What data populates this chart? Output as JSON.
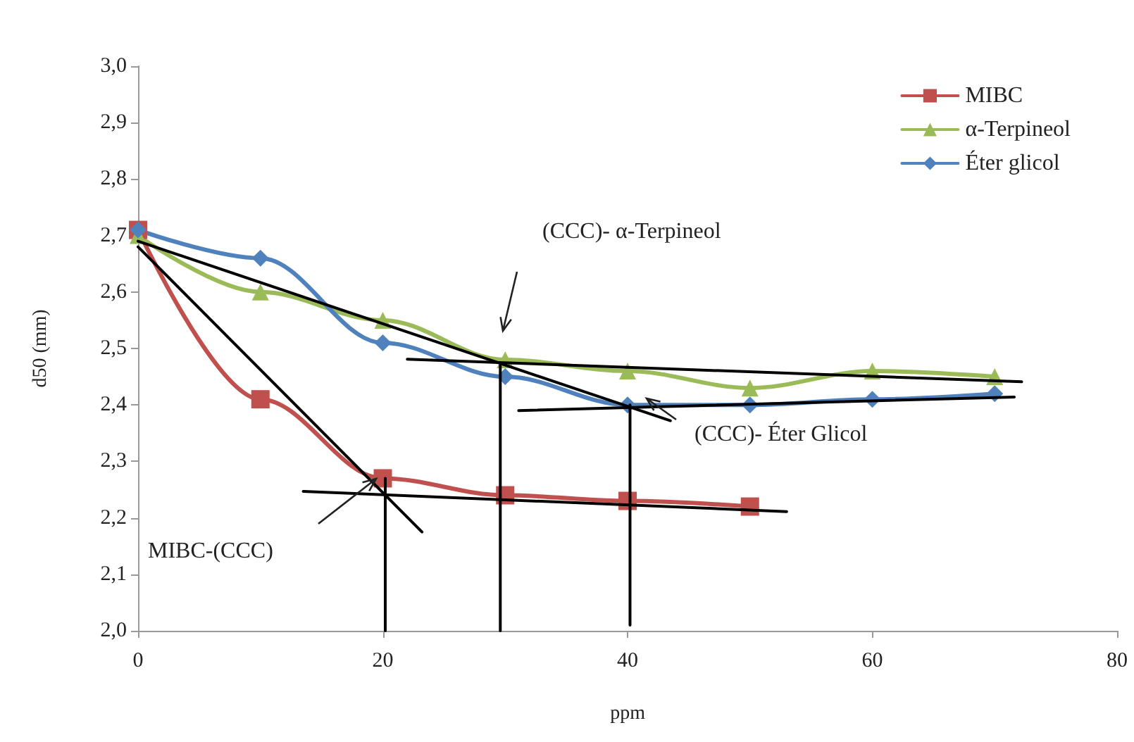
{
  "chart_data": {
    "type": "line",
    "xlabel": "ppm",
    "ylabel": "d50 (mm)",
    "xlim": [
      0,
      80
    ],
    "xticks": [
      0,
      20,
      40,
      60,
      80
    ],
    "ylim": [
      2,
      3
    ],
    "yticks": [
      {
        "value": 2,
        "label": "2,0"
      },
      {
        "value": 2.1,
        "label": "2,1"
      },
      {
        "value": 2.2,
        "label": "2,2"
      },
      {
        "value": 2.3,
        "label": "2,3"
      },
      {
        "value": 2.4,
        "label": "2,4"
      },
      {
        "value": 2.5,
        "label": "2,5"
      },
      {
        "value": 2.6,
        "label": "2,6"
      },
      {
        "value": 2.7,
        "label": "2,7"
      },
      {
        "value": 2.8,
        "label": "2,8"
      },
      {
        "value": 2.9,
        "label": "2,9"
      },
      {
        "value": 3,
        "label": "3,0"
      }
    ],
    "grid": false,
    "legend": "top right",
    "series": [
      {
        "name": "MIBC",
        "color": "#c0504d",
        "marker": "square",
        "x": [
          0,
          10,
          20,
          30,
          40,
          50
        ],
        "values": [
          2.71,
          2.41,
          2.27,
          2.24,
          2.23,
          2.22
        ]
      },
      {
        "name": "α-Terpineol",
        "color": "#9bbb59",
        "marker": "triangle",
        "x": [
          0,
          10,
          20,
          30,
          40,
          50,
          60,
          70
        ],
        "values": [
          2.7,
          2.6,
          2.55,
          2.48,
          2.46,
          2.43,
          2.46,
          2.45
        ]
      },
      {
        "name": "Éter glicol",
        "color": "#4f81bd",
        "marker": "diamond",
        "x": [
          0,
          10,
          20,
          30,
          40,
          50,
          60,
          70
        ],
        "values": [
          2.71,
          2.66,
          2.51,
          2.45,
          2.4,
          2.4,
          2.41,
          2.42
        ]
      },
      {
        "color": "#000000",
        "marker": "none",
        "x": [
          0,
          23.2
        ],
        "values": [
          2.68,
          2.175
        ]
      },
      {
        "color": "#000000",
        "marker": "none",
        "x": [
          13.5,
          53
        ],
        "values": [
          2.247,
          2.211
        ]
      },
      {
        "color": "#000000",
        "marker": "none",
        "x": [
          0,
          43.5
        ],
        "values": [
          2.69,
          2.372
        ]
      },
      {
        "color": "#000000",
        "marker": "none",
        "x": [
          22,
          72.2
        ],
        "values": [
          2.481,
          2.441
        ]
      },
      {
        "color": "#000000",
        "marker": "none",
        "x": [
          31.1,
          71.6
        ],
        "values": [
          2.39,
          2.414
        ]
      },
      {
        "color": "#000000",
        "marker": "none",
        "x": [
          20.2,
          20.2
        ],
        "values": [
          2,
          2.27
        ]
      },
      {
        "color": "#000000",
        "marker": "none",
        "x": [
          29.6,
          29.6
        ],
        "values": [
          2,
          2.47
        ]
      },
      {
        "color": "#000000",
        "marker": "none",
        "x": [
          40.2,
          40.2
        ],
        "values": [
          2.01,
          2.4
        ]
      }
    ],
    "annotations": [
      "(CCC)- α-Terpineol",
      "(CCC)- Éter Glicol",
      "MIBC-(CCC)"
    ]
  }
}
